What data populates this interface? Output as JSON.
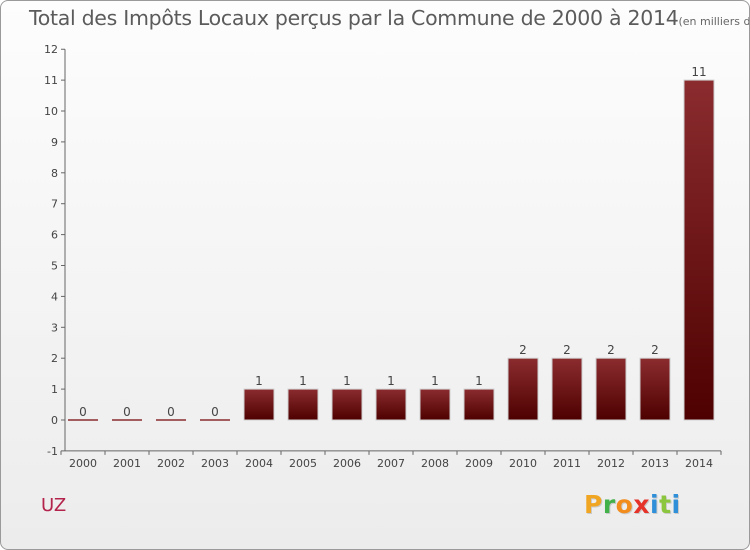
{
  "chart_data": {
    "type": "bar",
    "title": "Total des Impôts Locaux perçus par la Commune de 2000 à 2014",
    "unit_note": "(en milliers d'€)",
    "categories": [
      "2000",
      "2001",
      "2002",
      "2003",
      "2004",
      "2005",
      "2006",
      "2007",
      "2008",
      "2009",
      "2010",
      "2011",
      "2012",
      "2013",
      "2014"
    ],
    "values": [
      0,
      0,
      0,
      0,
      1,
      1,
      1,
      1,
      1,
      1,
      2,
      2,
      2,
      2,
      11
    ],
    "ylim": [
      -1,
      12
    ],
    "yticks": [
      -1,
      0,
      1,
      2,
      3,
      4,
      5,
      6,
      7,
      8,
      9,
      10,
      11,
      12
    ],
    "xlabel": "",
    "ylabel": "",
    "grid": false,
    "bar_color_top": "#8b2c2f",
    "bar_color_bottom": "#4e0000"
  },
  "commune": "UZ",
  "logo": {
    "letters": [
      "P",
      "r",
      "o",
      "x",
      "i",
      "t",
      "i"
    ],
    "colors": [
      "#f0a623",
      "#43b14a",
      "#f28c1c",
      "#e5332a",
      "#2f8fd8",
      "#8cc63f",
      "#2f8fd8"
    ]
  }
}
